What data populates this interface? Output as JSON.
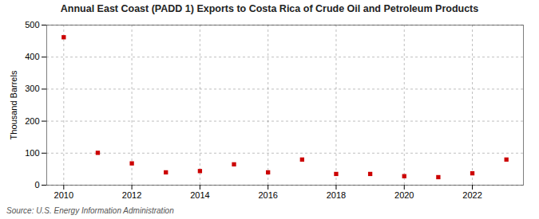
{
  "chart_data": {
    "type": "scatter",
    "title": "Annual East Coast (PADD 1) Exports to Costa Rica of Crude Oil and Petroleum Products",
    "ylabel": "Thousand Barrels",
    "annotations": [
      "Source: U.S. Energy Information Administration"
    ],
    "x": [
      2010,
      2011,
      2012,
      2013,
      2014,
      2015,
      2016,
      2017,
      2018,
      2019,
      2020,
      2021,
      2022,
      2023
    ],
    "values": [
      462,
      101,
      68,
      40,
      44,
      65,
      40,
      80,
      35,
      35,
      28,
      25,
      37,
      80
    ],
    "color": "#cc0000",
    "marker": "square",
    "xlim": [
      2009.5,
      2023.5
    ],
    "ylim": [
      0,
      500
    ],
    "xticks": [
      2010,
      2012,
      2014,
      2016,
      2018,
      2020,
      2022
    ],
    "yticks": [
      0,
      100,
      200,
      300,
      400,
      500
    ],
    "grid": true
  }
}
